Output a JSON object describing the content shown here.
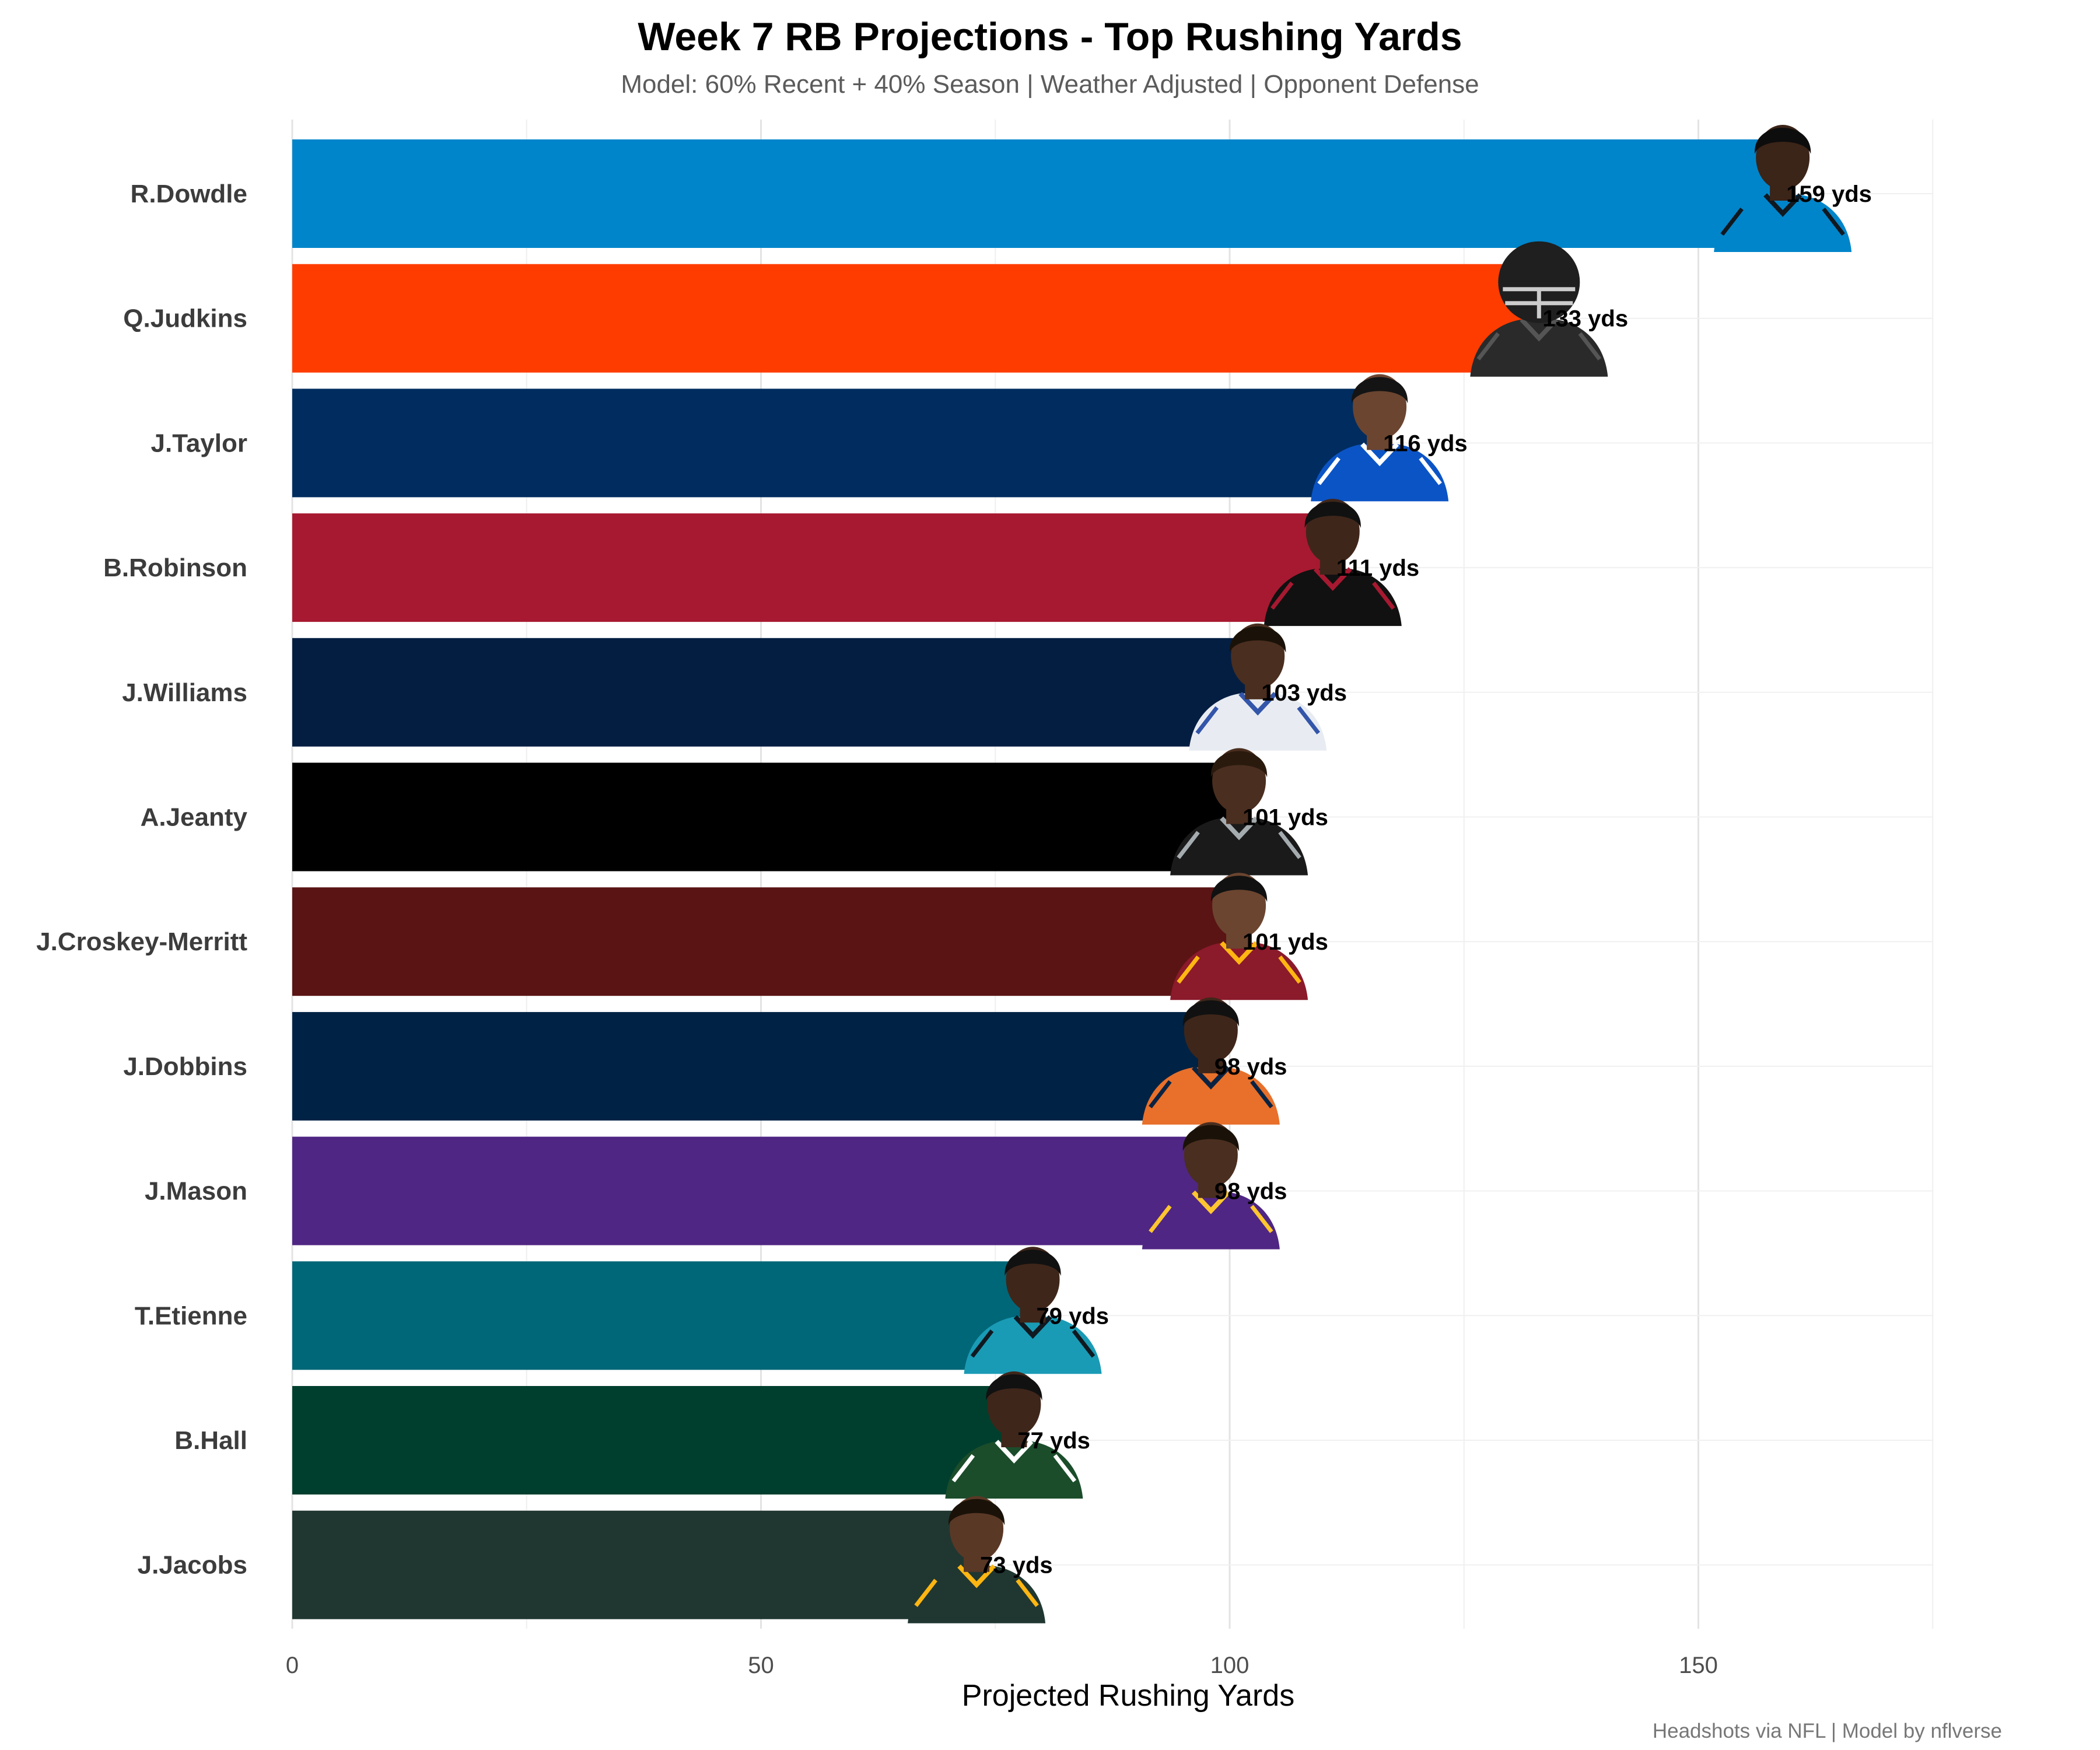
{
  "chart_data": {
    "type": "bar",
    "orientation": "horizontal",
    "title": "Week 7 RB Projections - Top Rushing Yards",
    "subtitle": "Model: 60% Recent + 40% Season | Weather Adjusted | Opponent Defense",
    "xlabel": "Projected Rushing Yards",
    "ylabel": "",
    "xlim": [
      0,
      175
    ],
    "x_ticks": [
      0,
      50,
      100,
      150
    ],
    "grid": true,
    "caption": "Headshots via NFL | Model by nflverse",
    "categories": [
      "R.Dowdle",
      "Q.Judkins",
      "J.Taylor",
      "B.Robinson",
      "J.Williams",
      "A.Jeanty",
      "J.Croskey-Merritt",
      "J.Dobbins",
      "J.Mason",
      "T.Etienne",
      "B.Hall",
      "J.Jacobs"
    ],
    "values": [
      159,
      133,
      116,
      111,
      103,
      101,
      101,
      98,
      98,
      79,
      77,
      73
    ],
    "value_labels": [
      "159 yds",
      "133 yds",
      "116 yds",
      "111 yds",
      "103 yds",
      "101 yds",
      "101 yds",
      "98 yds",
      "98 yds",
      "79 yds",
      "77 yds",
      "73 yds"
    ],
    "colors": [
      "#0085CA",
      "#FF3C00",
      "#002C5F",
      "#A71930",
      "#041E42",
      "#000000",
      "#5A1414",
      "#002244",
      "#4F2683",
      "#006778",
      "#003F2D",
      "#203731"
    ],
    "headshot_colors": [
      {
        "skin": "#3b2418",
        "hair": "#0d0d0d",
        "jersey": "#0085CA",
        "trim": "#101820"
      },
      {
        "skin": "#222222",
        "hair": "#111111",
        "jersey": "#2a2a2a",
        "trim": "#555555",
        "helmet": true
      },
      {
        "skin": "#6b4530",
        "hair": "#141414",
        "jersey": "#0B54C6",
        "trim": "#ffffff"
      },
      {
        "skin": "#3f261a",
        "hair": "#111111",
        "jersey": "#111111",
        "trim": "#A71930"
      },
      {
        "skin": "#4a2e1f",
        "hair": "#1a1208",
        "jersey": "#e8ecf2",
        "trim": "#3355aa"
      },
      {
        "skin": "#4a2e1f",
        "hair": "#2a1a0e",
        "jersey": "#1a1a1a",
        "trim": "#a5acaf"
      },
      {
        "skin": "#6b4530",
        "hair": "#111111",
        "jersey": "#8b1a2b",
        "trim": "#FFB612"
      },
      {
        "skin": "#3f261a",
        "hair": "#111111",
        "jersey": "#e8702a",
        "trim": "#0a2343"
      },
      {
        "skin": "#4a2e1f",
        "hair": "#1a1208",
        "jersey": "#4F2683",
        "trim": "#FFC62F"
      },
      {
        "skin": "#3f261a",
        "hair": "#111111",
        "jersey": "#1a9bb5",
        "trim": "#101820"
      },
      {
        "skin": "#3f261a",
        "hair": "#111111",
        "jersey": "#1b4d2b",
        "trim": "#ffffff"
      },
      {
        "skin": "#5a3826",
        "hair": "#1a1208",
        "jersey": "#203731",
        "trim": "#FFB612"
      }
    ]
  }
}
